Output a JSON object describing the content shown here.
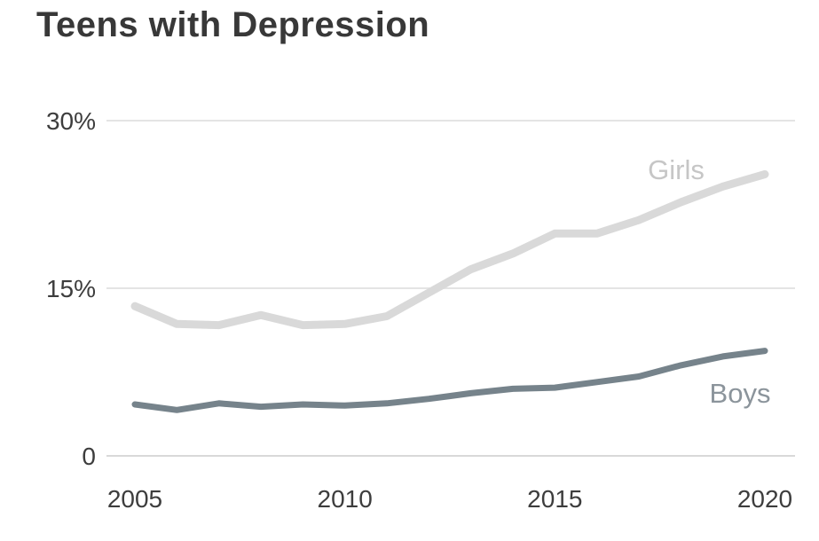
{
  "chart": {
    "title": "Teens with Depression"
  },
  "chart_data": {
    "type": "line",
    "title": "Teens with Depression",
    "x": [
      2005,
      2006,
      2007,
      2008,
      2009,
      2010,
      2011,
      2012,
      2013,
      2014,
      2015,
      2016,
      2017,
      2018,
      2019,
      2020
    ],
    "x_ticks": [
      "2005",
      "2010",
      "2015",
      "2020"
    ],
    "y_ticks": [
      {
        "label": "30%",
        "value": 30
      },
      {
        "label": "15%",
        "value": 15
      },
      {
        "label": "0",
        "value": 0
      }
    ],
    "xlim": [
      2005,
      2020
    ],
    "ylim": [
      0,
      30
    ],
    "grid": "horizontal",
    "legend_position": "inline-end-of-line-labels",
    "colors": {
      "gridline": "#e4e4e4",
      "zero_line": "#d9d9d9",
      "tick_text": "#3d3d3d",
      "title_text": "#383838"
    },
    "series": [
      {
        "name": "Girls",
        "color": "#d9d9d9",
        "label_color": "#c6c6c6",
        "values": [
          13.4,
          11.8,
          11.7,
          12.6,
          11.7,
          11.8,
          12.5,
          14.6,
          16.7,
          18.1,
          19.9,
          19.9,
          21.1,
          22.7,
          24.1,
          25.2
        ]
      },
      {
        "name": "Boys",
        "color": "#76838b",
        "label_color": "#8b949b",
        "values": [
          4.6,
          4.1,
          4.7,
          4.4,
          4.6,
          4.5,
          4.7,
          5.1,
          5.6,
          6.0,
          6.1,
          6.6,
          7.1,
          8.1,
          8.9,
          9.4
        ]
      }
    ]
  }
}
